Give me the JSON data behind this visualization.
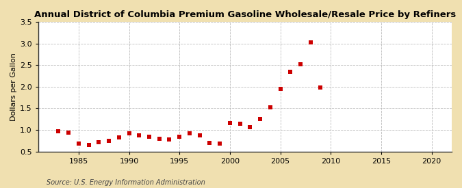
{
  "title": "Annual District of Columbia Premium Gasoline Wholesale/Resale Price by Refiners",
  "ylabel": "Dollars per Gallon",
  "source": "Source: U.S. Energy Information Administration",
  "years": [
    1983,
    1984,
    1985,
    1986,
    1987,
    1988,
    1989,
    1990,
    1991,
    1992,
    1993,
    1994,
    1995,
    1996,
    1997,
    1998,
    1999,
    2000,
    2001,
    2002,
    2003,
    2004,
    2005,
    2006,
    2007,
    2008,
    2009
  ],
  "values": [
    0.97,
    0.94,
    0.68,
    0.65,
    0.72,
    0.75,
    0.83,
    0.93,
    0.87,
    0.84,
    0.8,
    0.78,
    0.84,
    0.92,
    0.88,
    0.7,
    0.68,
    1.16,
    1.15,
    1.07,
    1.26,
    1.53,
    1.95,
    2.34,
    2.52,
    3.03,
    1.98
  ],
  "marker_color": "#cc0000",
  "marker_size": 4,
  "xlim": [
    1981,
    2022
  ],
  "ylim": [
    0.5,
    3.5
  ],
  "yticks": [
    0.5,
    1.0,
    1.5,
    2.0,
    2.5,
    3.0,
    3.5
  ],
  "xticks": [
    1985,
    1990,
    1995,
    2000,
    2005,
    2010,
    2015,
    2020
  ],
  "fig_background_color": "#f0e0b0",
  "plot_background_color": "#ffffff",
  "grid_color": "#bbbbbb",
  "spine_color": "#333333",
  "title_fontsize": 9.5,
  "label_fontsize": 8,
  "tick_fontsize": 8,
  "source_fontsize": 7
}
